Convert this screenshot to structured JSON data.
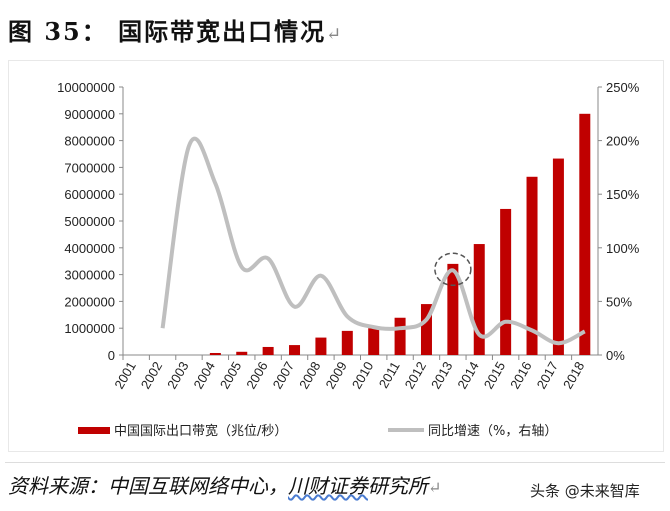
{
  "title": "图 35： 国际带宽出口情况",
  "return_mark": "↵",
  "source": {
    "prefix": "资料来源：中国互联网络中心，",
    "underlined": "川财证券",
    "suffix": "研究所"
  },
  "watermark": "头条 @未来智库",
  "colors": {
    "bar": "#C00000",
    "line": "#BFBFBF",
    "highlight_circle": "#555555"
  },
  "chart_data": {
    "type": "bar+line",
    "categories": [
      "2001",
      "2002",
      "2003",
      "2004",
      "2005",
      "2006",
      "2007",
      "2008",
      "2009",
      "2010",
      "2011",
      "2012",
      "2013",
      "2014",
      "2015",
      "2016",
      "2017",
      "2018"
    ],
    "series": [
      {
        "name": "中国国际出口带宽（兆位/秒）",
        "type": "bar",
        "axis": "left",
        "values": [
          null,
          null,
          null,
          75000,
          120000,
          300000,
          370000,
          650000,
          900000,
          1000000,
          1390000,
          1900000,
          3400000,
          4140000,
          5450000,
          6650000,
          7330000,
          9000000
        ]
      },
      {
        "name": "同比增速（%，右轴）",
        "type": "line",
        "axis": "right",
        "values": [
          null,
          25,
          195,
          160,
          82,
          90,
          45,
          74,
          36,
          26,
          25,
          33,
          79,
          19,
          31,
          23,
          11,
          22
        ]
      }
    ],
    "y_left": {
      "min": 0,
      "max": 10000000,
      "ticks": [
        "0",
        "1000000",
        "2000000",
        "3000000",
        "4000000",
        "5000000",
        "6000000",
        "7000000",
        "8000000",
        "9000000",
        "10000000"
      ]
    },
    "y_right": {
      "min": 0,
      "max": 250,
      "ticks": [
        "0%",
        "50%",
        "100%",
        "150%",
        "200%",
        "250%"
      ]
    },
    "annotation": {
      "type": "dashed-circle",
      "category": "2013"
    },
    "grid": false,
    "legend_position": "bottom"
  }
}
